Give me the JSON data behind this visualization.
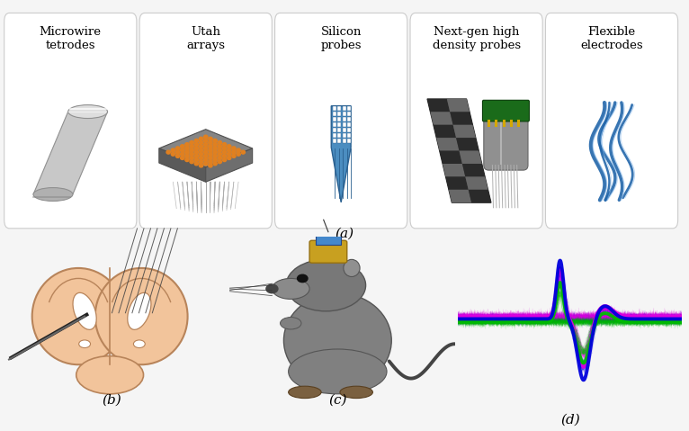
{
  "fig_width": 7.66,
  "fig_height": 4.79,
  "background_color": "#f5f5f5",
  "panel_a_labels": [
    "Microwire\ntetrodes",
    "Utah\narrays",
    "Silicon\nprobes",
    "Next-gen high\ndensity probes",
    "Flexible\nelectrodes"
  ],
  "panel_label_fontsize": 11,
  "item_label_fontsize": 9.5,
  "card_bg": "#ffffff",
  "card_edge": "#cccccc",
  "utah_orange": "#e08020",
  "silicon_blue": "#4b8dc0",
  "flex_blue": "#2266aa",
  "nextgen_green": "#1a5c1a",
  "brain_skin": "#f2c49b",
  "brain_outline": "#b8845a",
  "spike_blue": "#0000dd",
  "spike_magenta": "#dd00dd",
  "spike_green": "#00bb00"
}
